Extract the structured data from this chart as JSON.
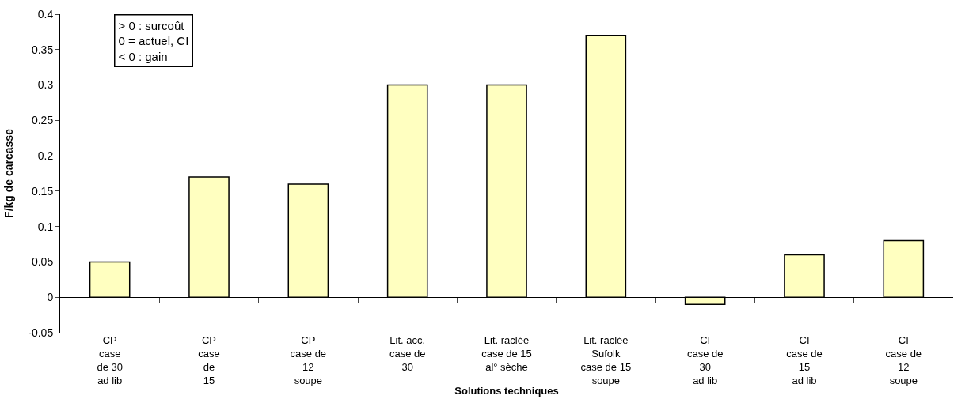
{
  "chart_data": {
    "type": "bar",
    "xlabel": "Solutions techniques",
    "ylabel": "F/kg de carcasse",
    "categories": [
      "CP\ncase\nde 30\nad lib",
      "CP\ncase\nde\n15",
      "CP\ncase de\n12\nsoupe",
      "Lit. acc.\ncase de\n30",
      "Lit. raclée\ncase de 15\nal° sèche",
      "Lit. raclée\nSufolk\ncase de 15\nsoupe",
      "CI\ncase de\n30\nad lib",
      "CI\ncase de\n15\nad lib",
      "CI\ncase de\n12\nsoupe"
    ],
    "values": [
      0.05,
      0.17,
      0.16,
      0.3,
      0.3,
      0.37,
      -0.01,
      0.06,
      0.08
    ],
    "color": "#ffffc0",
    "ylim": [
      -0.05,
      0.4
    ],
    "yticks": [
      -0.05,
      0,
      0.05,
      0.1,
      0.15,
      0.2,
      0.25,
      0.3,
      0.35,
      0.4
    ],
    "legend": false,
    "annotations": [
      "> 0 : surcoût\n0 = actuel, CI\n< 0 : gain"
    ]
  }
}
